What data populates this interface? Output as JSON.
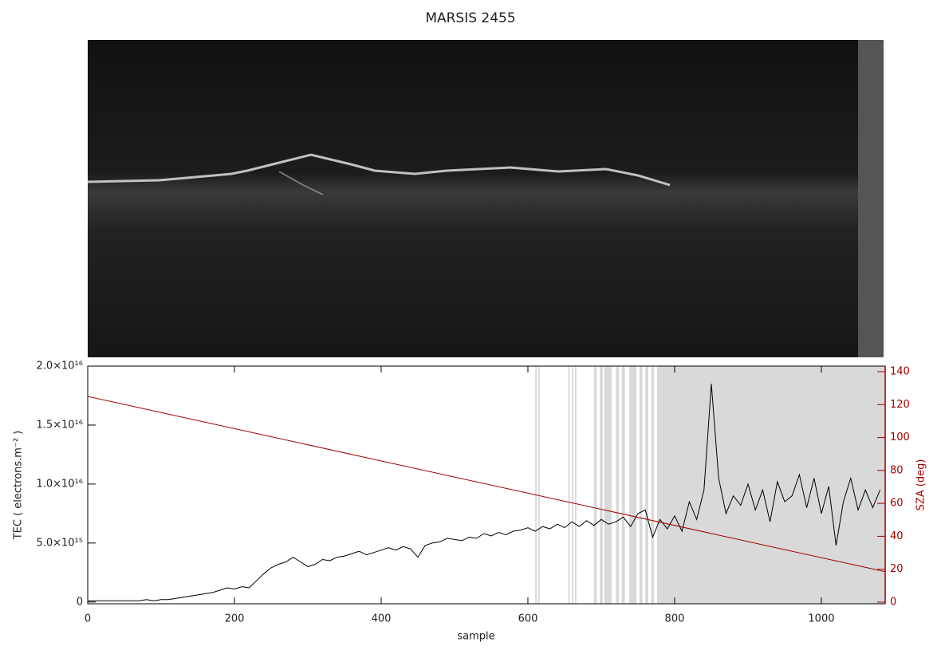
{
  "chart_data": {
    "type": "line",
    "title": "MARSIS 2455",
    "xlabel": "sample",
    "ylabel": "TEC ( electrons.m⁻² )",
    "y2label": "SZA (deg)",
    "xlim": [
      0,
      1087
    ],
    "xticks": [
      0,
      200,
      400,
      600,
      800,
      1000
    ],
    "ylim": [
      -150000000000000.0,
      2e+16
    ],
    "yticks": [
      0,
      {
        "value": 5000000000000000.0,
        "label": "5.0×10¹⁵"
      },
      {
        "value": 1e+16,
        "label": "1.0×10¹⁶"
      },
      {
        "value": 1.5e+16,
        "label": "1.5×10¹⁶"
      },
      {
        "value": 2e+16,
        "label": "2.0×10¹⁶"
      }
    ],
    "y2lim": [
      -1,
      143.4
    ],
    "y2ticks": [
      0,
      20,
      40,
      60,
      80,
      100,
      120,
      140
    ],
    "y2color": "#a00000",
    "shade_color": "#d9d9d9",
    "shaded_spans": [
      [
        610,
        612
      ],
      [
        614,
        616
      ],
      [
        655,
        657
      ],
      [
        660,
        662
      ],
      [
        664,
        666
      ],
      [
        690,
        694
      ],
      [
        698,
        702
      ],
      [
        704,
        714
      ],
      [
        720,
        724
      ],
      [
        728,
        732
      ],
      [
        738,
        748
      ],
      [
        752,
        756
      ],
      [
        760,
        764
      ],
      [
        768,
        772
      ],
      [
        776,
        1087
      ]
    ],
    "series": [
      {
        "name": "TEC",
        "color": "#000000",
        "x": [
          0,
          10,
          20,
          30,
          40,
          50,
          60,
          70,
          80,
          90,
          100,
          110,
          120,
          130,
          140,
          150,
          160,
          170,
          180,
          190,
          200,
          210,
          220,
          230,
          240,
          250,
          260,
          270,
          280,
          290,
          300,
          310,
          320,
          330,
          340,
          350,
          360,
          370,
          380,
          390,
          400,
          410,
          420,
          430,
          440,
          450,
          460,
          470,
          480,
          490,
          500,
          510,
          520,
          530,
          540,
          550,
          560,
          570,
          580,
          590,
          600,
          610,
          620,
          630,
          640,
          650,
          660,
          670,
          680,
          690,
          700,
          710,
          720,
          730,
          740,
          750,
          760,
          770,
          780,
          790,
          800,
          810,
          820,
          830,
          840,
          850,
          860,
          870,
          880,
          890,
          900,
          910,
          920,
          930,
          940,
          950,
          960,
          970,
          980,
          990,
          1000,
          1010,
          1020,
          1030,
          1040,
          1050,
          1060,
          1070,
          1080
        ],
        "values": [
          100000000000000.0,
          100000000000000.0,
          100000000000000.0,
          100000000000000.0,
          100000000000000.0,
          100000000000000.0,
          100000000000000.0,
          100000000000000.0,
          200000000000000.0,
          100000000000000.0,
          200000000000000.0,
          200000000000000.0,
          300000000000000.0,
          400000000000000.0,
          500000000000000.0,
          600000000000000.0,
          700000000000000.0,
          800000000000000.0,
          1000000000000000.0,
          1200000000000000.0,
          1100000000000000.0,
          1300000000000000.0,
          1200000000000000.0,
          1800000000000000.0,
          2400000000000000.0,
          2900000000000000.0,
          3200000000000000.0,
          3400000000000000.0,
          3800000000000000.0,
          3400000000000000.0,
          3000000000000000.0,
          3200000000000000.0,
          3600000000000000.0,
          3500000000000000.0,
          3800000000000000.0,
          3900000000000000.0,
          4100000000000000.0,
          4300000000000000.0,
          4000000000000000.0,
          4200000000000000.0,
          4400000000000000.0,
          4600000000000000.0,
          4400000000000000.0,
          4700000000000000.0,
          4500000000000000.0,
          3800000000000000.0,
          4800000000000000.0,
          5000000000000000.0,
          5100000000000000.0,
          5400000000000000.0,
          5300000000000000.0,
          5200000000000000.0,
          5500000000000000.0,
          5400000000000000.0,
          5800000000000000.0,
          5600000000000000.0,
          5900000000000000.0,
          5700000000000000.0,
          6000000000000000.0,
          6100000000000000.0,
          6300000000000000.0,
          6000000000000000.0,
          6400000000000000.0,
          6200000000000000.0,
          6600000000000000.0,
          6300000000000000.0,
          6800000000000000.0,
          6400000000000000.0,
          6900000000000000.0,
          6500000000000000.0,
          7000000000000000.0,
          6600000000000000.0,
          6800000000000000.0,
          7200000000000000.0,
          6400000000000000.0,
          7500000000000000.0,
          7800000000000000.0,
          5500000000000000.0,
          7000000000000000.0,
          6200000000000000.0,
          7300000000000000.0,
          6000000000000000.0,
          8500000000000000.0,
          7000000000000000.0,
          9500000000000000.0,
          1.85e+16,
          1.05e+16,
          7500000000000000.0,
          9000000000000000.0,
          8200000000000000.0,
          1e+16,
          7800000000000000.0,
          9500000000000000.0,
          6800000000000000.0,
          1.02e+16,
          8500000000000000.0,
          9000000000000000.0,
          1.08e+16,
          8000000000000000.0,
          1.05e+16,
          7500000000000000.0,
          9800000000000000.0,
          4800000000000000.0,
          8500000000000000.0,
          1.05e+16,
          7800000000000000.0,
          9500000000000000.0,
          8000000000000000.0,
          9500000000000000.0
        ]
      },
      {
        "name": "SZA",
        "color": "#a00000",
        "axis": "y2",
        "x": [
          0,
          1087
        ],
        "values": [
          125,
          18.5
        ]
      }
    ]
  }
}
